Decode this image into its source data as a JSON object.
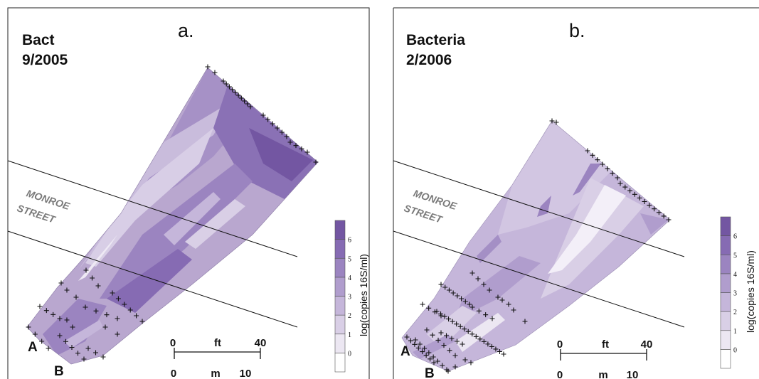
{
  "colors": {
    "frame": "#222222",
    "street_label": "#7a7a7a",
    "plume_base": "#b9a7cf",
    "scale": [
      "#ffffff",
      "#ece7f2",
      "#d9cfe6",
      "#c5b6da",
      "#b09dcd",
      "#9b84c0",
      "#866bb3",
      "#7356a2"
    ]
  },
  "panels": [
    {
      "title_line1": "Bact",
      "title_line2": "9/2005",
      "letter": "a.",
      "street_line1": "MONROE",
      "street_line2": "STREET",
      "section_a": "A",
      "section_b": "B",
      "scale_ft_zero": "0",
      "scale_ft_unit": "ft",
      "scale_ft_max": "40",
      "scale_m_zero": "0",
      "scale_m_unit": "m",
      "scale_m_max": "10",
      "legend_title": "log(copies 16S/ml)",
      "legend_ticks": [
        "0",
        "1",
        "2",
        "3",
        "4",
        "5",
        "6"
      ]
    },
    {
      "title_line1": "Bacteria",
      "title_line2": "2/2006",
      "letter": "b.",
      "street_line1": "MONROE",
      "street_line2": "STREET",
      "section_a": "A",
      "section_b": "B",
      "scale_ft_zero": "0",
      "scale_ft_unit": "ft",
      "scale_ft_max": "40",
      "scale_m_zero": "0",
      "scale_m_unit": "m",
      "scale_m_max": "10",
      "legend_title": "log(copies 16S/ml)",
      "legend_ticks": [
        "0",
        "1",
        "2",
        "3",
        "4",
        "5",
        "6"
      ]
    }
  ]
}
